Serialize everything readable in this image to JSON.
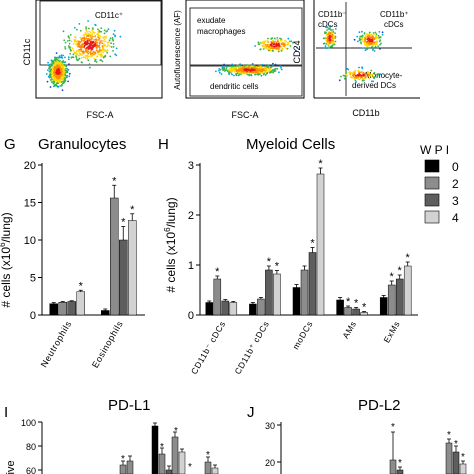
{
  "flow_panels": [
    {
      "xlabel": "FSC-A",
      "ylabel": "CD11c",
      "gate_labels": [
        "CD11c⁺"
      ]
    },
    {
      "xlabel": "FSC-A",
      "ylabel": "Autofluorescence (AF)",
      "gate_labels": [
        "exudate macrophages",
        "dendritic cells"
      ]
    },
    {
      "xlabel": "CD11b",
      "ylabel": "CD24",
      "gate_labels": [
        "CD11b⁻ cDCs",
        "CD11b⁺ cDCs",
        "Monocyte-derived DCs"
      ]
    }
  ],
  "panel_letters": {
    "G": "G",
    "H": "H",
    "I": "I",
    "J": "J"
  },
  "legend": {
    "title": "W P I",
    "entries": [
      "0",
      "2",
      "3",
      "4"
    ]
  },
  "colors": {
    "wpi0": "#000000",
    "wpi2": "#8c8c8c",
    "wpi3": "#5e5e5e",
    "wpi4": "#d2d2d2"
  },
  "chart_data": [
    {
      "type": "bar",
      "title": "Granulocytes",
      "ylabel": "# cells (x10⁶/lung)",
      "ylim": [
        0,
        20
      ],
      "yticks": [
        "0",
        "5",
        "10",
        "15",
        "20"
      ],
      "categories": [
        "Neutrophils",
        "Eosinophils"
      ],
      "series": [
        {
          "name": "0",
          "values": [
            1.5,
            0.6
          ],
          "errors": [
            0.15,
            0.2
          ]
        },
        {
          "name": "2",
          "values": [
            1.7,
            15.6
          ],
          "errors": [
            0.1,
            1.7
          ]
        },
        {
          "name": "3",
          "values": [
            1.8,
            10.0
          ],
          "errors": [
            0.1,
            1.8
          ]
        },
        {
          "name": "4",
          "values": [
            3.1,
            12.6
          ],
          "errors": [
            0.2,
            0.9
          ]
        }
      ],
      "significance": [
        [
          false,
          false
        ],
        [
          false,
          true
        ],
        [
          false,
          true
        ],
        [
          true,
          true
        ]
      ]
    },
    {
      "type": "bar",
      "title": "Myeloid Cells",
      "ylabel": "# cells (x10⁶/lung)",
      "ylim": [
        0,
        3.0
      ],
      "yticks": [
        "0",
        "1",
        "2",
        "3"
      ],
      "categories": [
        "CD11b⁻ cDCs",
        "CD11b⁺ cDCs",
        "moDCs",
        "AMs",
        "ExMs"
      ],
      "series": [
        {
          "name": "0",
          "values": [
            0.25,
            0.22,
            0.55,
            0.3,
            0.35
          ],
          "errors": [
            0.03,
            0.03,
            0.06,
            0.05,
            0.04
          ]
        },
        {
          "name": "2",
          "values": [
            0.72,
            0.32,
            0.9,
            0.15,
            0.6
          ],
          "errors": [
            0.06,
            0.03,
            0.08,
            0.03,
            0.08
          ]
        },
        {
          "name": "3",
          "values": [
            0.28,
            0.9,
            1.25,
            0.12,
            0.72
          ],
          "errors": [
            0.03,
            0.08,
            0.1,
            0.03,
            0.08
          ]
        },
        {
          "name": "4",
          "values": [
            0.25,
            0.82,
            2.82,
            0.05,
            0.98
          ],
          "errors": [
            0.02,
            0.07,
            0.12,
            0.02,
            0.08
          ]
        }
      ],
      "significance": [
        [
          false,
          false,
          false,
          false,
          false
        ],
        [
          true,
          false,
          false,
          true,
          true
        ],
        [
          false,
          true,
          true,
          true,
          true
        ],
        [
          false,
          true,
          true,
          true,
          true
        ]
      ]
    },
    {
      "type": "bar",
      "title": "PD-L1",
      "ylim": [
        60,
        100
      ],
      "yticks": [
        "60",
        "80",
        "100"
      ],
      "ylabel": "...ive",
      "partial": true
    },
    {
      "type": "bar",
      "title": "PD-L2",
      "ylim": [
        20,
        30
      ],
      "yticks": [
        "20",
        "30"
      ],
      "partial": true
    }
  ]
}
